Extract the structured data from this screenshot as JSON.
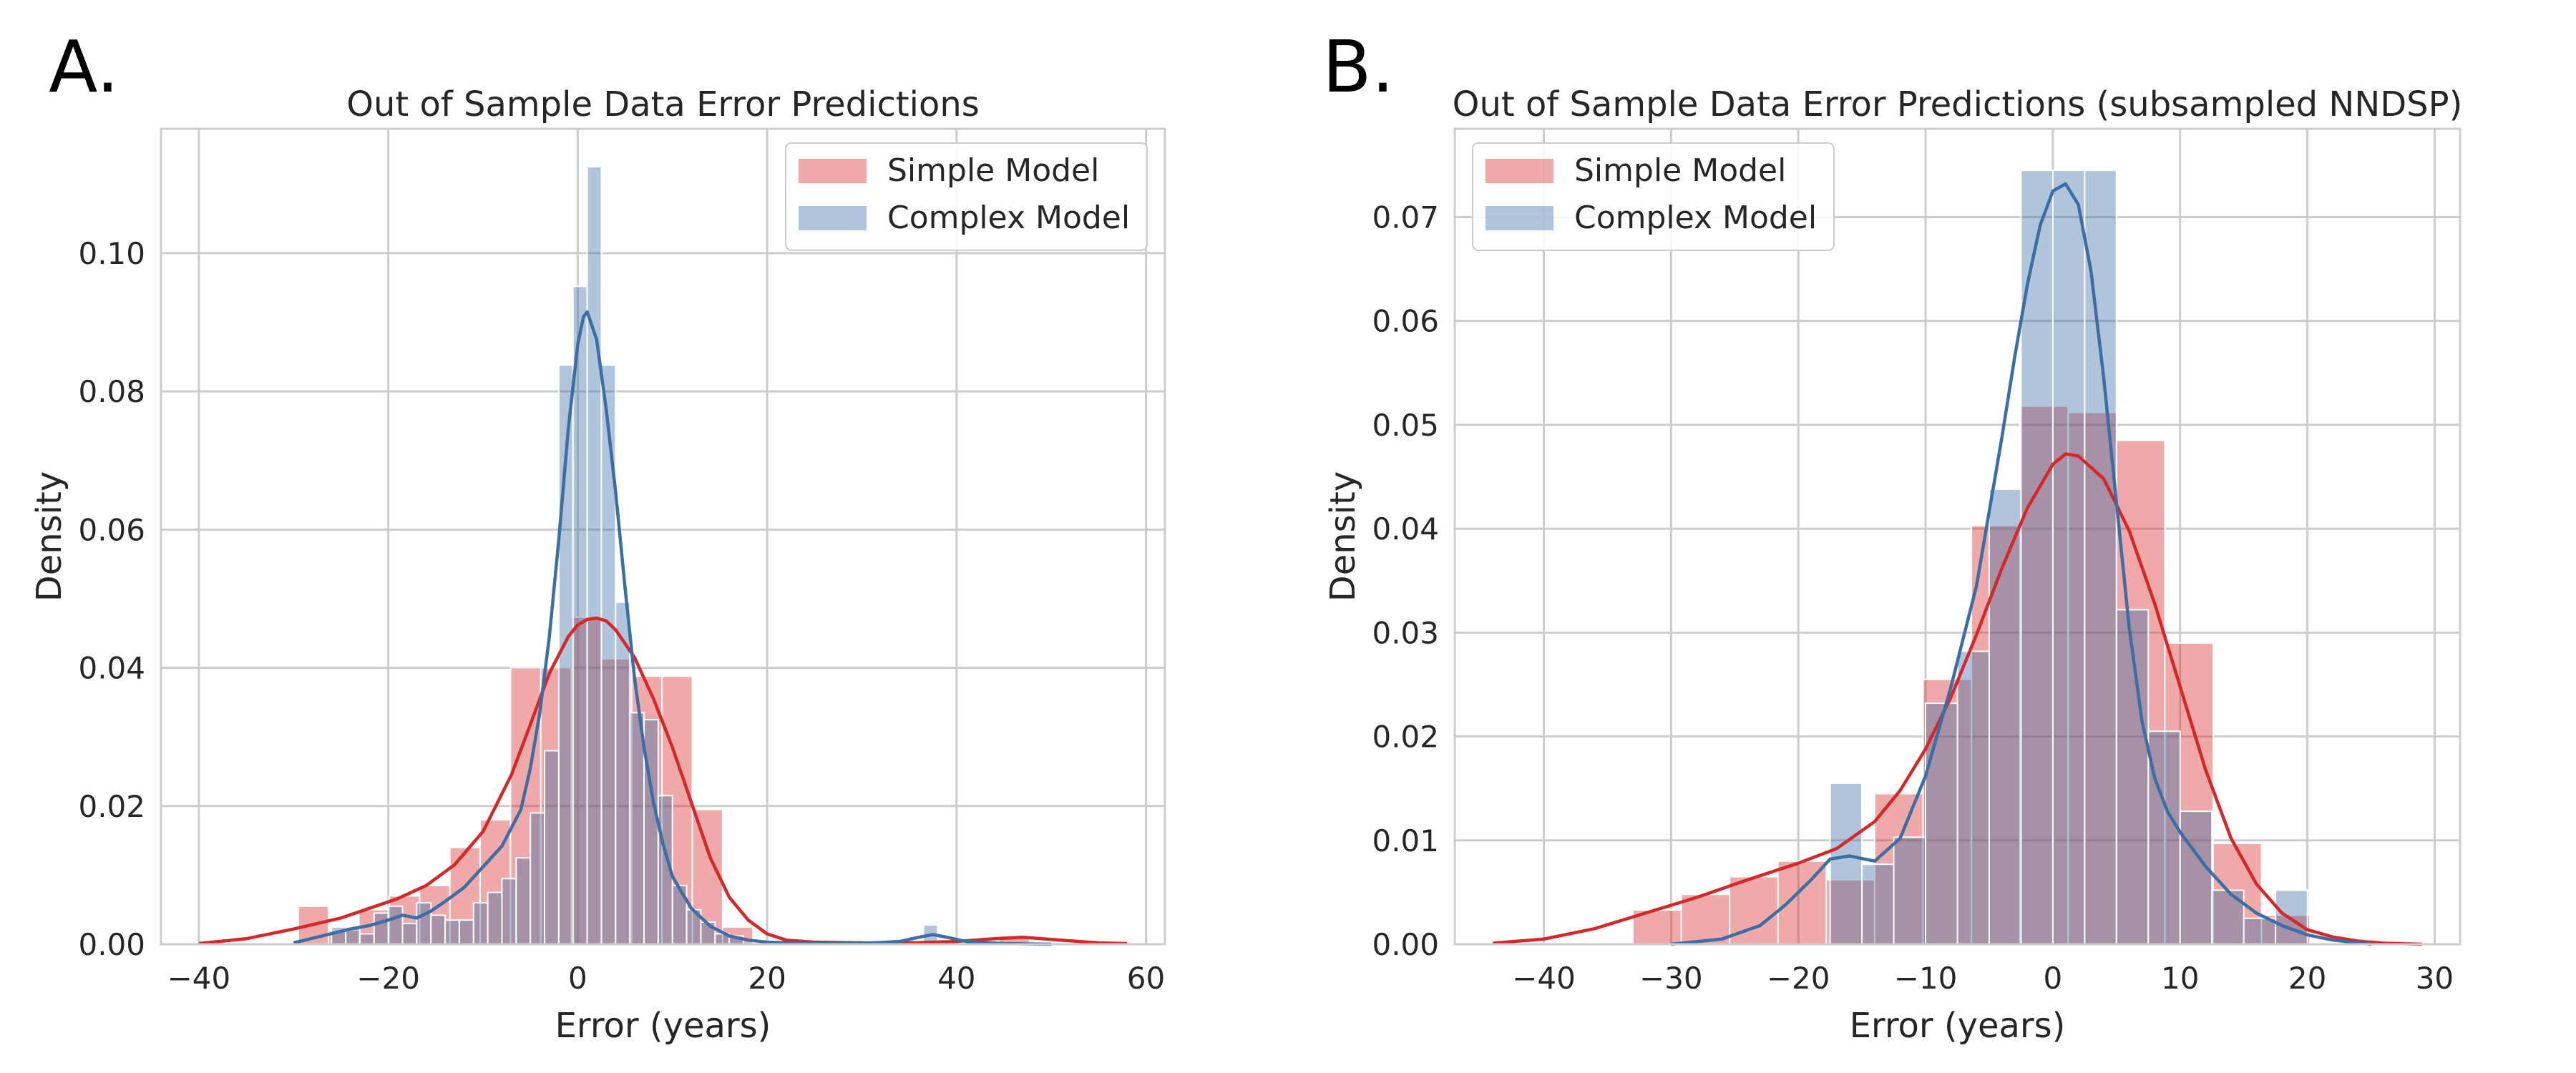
{
  "figure": {
    "panels": [
      "A.",
      "B."
    ]
  },
  "colors": {
    "simple": "#d62728",
    "simple_fill": "#e8a3a6",
    "complex": "#3a6ea5",
    "complex_fill": "#a6c0db",
    "grid": "#cccccc",
    "frame": "#cccccc"
  },
  "chart_data": [
    {
      "type": "histogram",
      "panel": "A.",
      "title": "Out of Sample Data Error Predictions",
      "xlabel": "Error (years)",
      "ylabel": "Density",
      "xlim": [
        -44,
        62
      ],
      "ylim": [
        0,
        0.118
      ],
      "xticks": [
        -40,
        -20,
        0,
        20,
        40,
        60
      ],
      "yticks": [
        0.0,
        0.02,
        0.04,
        0.06,
        0.08,
        0.1
      ],
      "ytick_labels": [
        "0.00",
        "0.02",
        "0.04",
        "0.06",
        "0.08",
        "0.10"
      ],
      "grid": true,
      "legend": "top-right",
      "series": [
        {
          "name": "Simple Model",
          "color_key": "simple",
          "bins": [
            {
              "x0": -29.5,
              "x1": -26.3,
              "y": 0.0055
            },
            {
              "x0": -26.3,
              "x1": -23.1,
              "y": 0.002
            },
            {
              "x0": -23.1,
              "x1": -19.9,
              "y": 0.005
            },
            {
              "x0": -19.9,
              "x1": -16.7,
              "y": 0.007
            },
            {
              "x0": -16.7,
              "x1": -13.5,
              "y": 0.0085
            },
            {
              "x0": -13.5,
              "x1": -10.3,
              "y": 0.014
            },
            {
              "x0": -10.3,
              "x1": -7.1,
              "y": 0.018
            },
            {
              "x0": -7.1,
              "x1": -3.9,
              "y": 0.04
            },
            {
              "x0": -3.9,
              "x1": -0.7,
              "y": 0.04
            },
            {
              "x0": -0.7,
              "x1": 2.5,
              "y": 0.0473
            },
            {
              "x0": 2.5,
              "x1": 5.7,
              "y": 0.0413
            },
            {
              "x0": 5.7,
              "x1": 8.9,
              "y": 0.0388
            },
            {
              "x0": 8.9,
              "x1": 12.1,
              "y": 0.0388
            },
            {
              "x0": 12.1,
              "x1": 15.3,
              "y": 0.0195
            },
            {
              "x0": 15.3,
              "x1": 18.5,
              "y": 0.0025
            },
            {
              "x0": 44.5,
              "x1": 47.7,
              "y": 0.0012
            }
          ],
          "kde": {
            "x": [
              -40,
              -35,
              -30,
              -25,
              -22,
              -19,
              -16,
              -13,
              -10,
              -7,
              -5,
              -3,
              -1,
              0,
              1,
              2,
              3,
              4,
              6,
              8,
              10,
              12,
              14,
              16,
              18,
              20,
              22,
              25,
              30,
              35,
              40,
              44,
              47,
              50,
              55,
              58
            ],
            "y": [
              0.0001,
              0.0008,
              0.0022,
              0.0038,
              0.0052,
              0.0066,
              0.0085,
              0.0115,
              0.0163,
              0.0245,
              0.0318,
              0.0392,
              0.0445,
              0.0462,
              0.047,
              0.0472,
              0.0468,
              0.0455,
              0.0415,
              0.0355,
              0.0285,
              0.0205,
              0.0125,
              0.0068,
              0.0035,
              0.0015,
              0.0006,
              0.0003,
              0.0002,
              0.0002,
              0.0004,
              0.0008,
              0.001,
              0.0007,
              0.0002,
              0.0001
            ]
          }
        },
        {
          "name": "Complex Model",
          "color_key": "complex",
          "bins": [
            {
              "x0": -26.0,
              "x1": -24.5,
              "y": 0.0025
            },
            {
              "x0": -24.5,
              "x1": -23.0,
              "y": 0.0025
            },
            {
              "x0": -23.0,
              "x1": -21.5,
              "y": 0.0015
            },
            {
              "x0": -21.5,
              "x1": -20.0,
              "y": 0.0045
            },
            {
              "x0": -20.0,
              "x1": -18.5,
              "y": 0.0055
            },
            {
              "x0": -18.5,
              "x1": -17.0,
              "y": 0.003
            },
            {
              "x0": -17.0,
              "x1": -15.5,
              "y": 0.006
            },
            {
              "x0": -15.5,
              "x1": -14.0,
              "y": 0.0042
            },
            {
              "x0": -14.0,
              "x1": -12.5,
              "y": 0.0035
            },
            {
              "x0": -12.5,
              "x1": -11.0,
              "y": 0.0035
            },
            {
              "x0": -11.0,
              "x1": -9.5,
              "y": 0.006
            },
            {
              "x0": -9.5,
              "x1": -8.0,
              "y": 0.0075
            },
            {
              "x0": -8.0,
              "x1": -6.5,
              "y": 0.0095
            },
            {
              "x0": -6.5,
              "x1": -5.0,
              "y": 0.0125
            },
            {
              "x0": -5.0,
              "x1": -3.5,
              "y": 0.019
            },
            {
              "x0": -3.5,
              "x1": -2.0,
              "y": 0.028
            },
            {
              "x0": -2.0,
              "x1": -0.5,
              "y": 0.0838
            },
            {
              "x0": -0.5,
              "x1": 1.0,
              "y": 0.0952
            },
            {
              "x0": 1.0,
              "x1": 2.5,
              "y": 0.1125
            },
            {
              "x0": 2.5,
              "x1": 4.0,
              "y": 0.0838
            },
            {
              "x0": 4.0,
              "x1": 5.5,
              "y": 0.0495
            },
            {
              "x0": 5.5,
              "x1": 7.0,
              "y": 0.0335
            },
            {
              "x0": 7.0,
              "x1": 8.5,
              "y": 0.0325
            },
            {
              "x0": 8.5,
              "x1": 10.0,
              "y": 0.0215
            },
            {
              "x0": 10.0,
              "x1": 11.5,
              "y": 0.0085
            },
            {
              "x0": 11.5,
              "x1": 13.0,
              "y": 0.005
            },
            {
              "x0": 13.0,
              "x1": 14.5,
              "y": 0.0032
            },
            {
              "x0": 14.5,
              "x1": 16.0,
              "y": 0.0015
            },
            {
              "x0": 16.0,
              "x1": 17.5,
              "y": 0.0012
            },
            {
              "x0": 36.5,
              "x1": 38.0,
              "y": 0.0028
            }
          ],
          "kde": {
            "x": [
              -30,
              -27,
              -24,
              -22,
              -20,
              -18.5,
              -17,
              -15.5,
              -14,
              -12,
              -10,
              -8,
              -6,
              -5,
              -4,
              -3,
              -2,
              -1,
              0,
              0.6,
              1,
              2,
              3,
              4,
              5,
              6,
              7,
              8,
              9,
              10,
              12,
              14,
              16,
              18,
              20,
              25,
              30,
              34,
              36,
              37.5,
              39,
              41,
              45,
              50
            ],
            "y": [
              0.0002,
              0.0012,
              0.0022,
              0.0027,
              0.0035,
              0.0042,
              0.0038,
              0.0048,
              0.0062,
              0.0082,
              0.0112,
              0.0142,
              0.0195,
              0.0255,
              0.0335,
              0.0445,
              0.0585,
              0.0745,
              0.0868,
              0.0908,
              0.0915,
              0.0875,
              0.0775,
              0.0655,
              0.0515,
              0.0385,
              0.0285,
              0.0205,
              0.0145,
              0.0098,
              0.0052,
              0.0026,
              0.0012,
              0.0006,
              0.0003,
              0.0001,
              0.0001,
              0.0004,
              0.001,
              0.0014,
              0.001,
              0.0004,
              0.0001,
              0.0
            ]
          }
        }
      ]
    },
    {
      "type": "histogram",
      "panel": "B.",
      "title": "Out of Sample Data Error Predictions (subsampled NNDSP)",
      "xlabel": "Error (years)",
      "ylabel": "Density",
      "xlim": [
        -47,
        32
      ],
      "ylim": [
        0,
        0.0785
      ],
      "xticks": [
        -40,
        -30,
        -20,
        -10,
        0,
        10,
        20,
        30
      ],
      "yticks": [
        0.0,
        0.01,
        0.02,
        0.03,
        0.04,
        0.05,
        0.06,
        0.07
      ],
      "ytick_labels": [
        "0.00",
        "0.01",
        "0.02",
        "0.03",
        "0.04",
        "0.05",
        "0.06",
        "0.07"
      ],
      "grid": true,
      "legend": "top-left",
      "series": [
        {
          "name": "Simple Model",
          "color_key": "simple",
          "bins": [
            {
              "x0": -33.0,
              "x1": -29.2,
              "y": 0.0033
            },
            {
              "x0": -29.2,
              "x1": -25.4,
              "y": 0.0048
            },
            {
              "x0": -25.4,
              "x1": -21.6,
              "y": 0.0065
            },
            {
              "x0": -21.6,
              "x1": -17.8,
              "y": 0.008
            },
            {
              "x0": -17.8,
              "x1": -14.0,
              "y": 0.0062
            },
            {
              "x0": -14.0,
              "x1": -10.2,
              "y": 0.0145
            },
            {
              "x0": -10.2,
              "x1": -6.4,
              "y": 0.0255
            },
            {
              "x0": -6.4,
              "x1": -2.6,
              "y": 0.0403
            },
            {
              "x0": -2.6,
              "x1": 1.2,
              "y": 0.0518
            },
            {
              "x0": 1.2,
              "x1": 5.0,
              "y": 0.0512
            },
            {
              "x0": 5.0,
              "x1": 8.8,
              "y": 0.0485
            },
            {
              "x0": 8.8,
              "x1": 12.6,
              "y": 0.029
            },
            {
              "x0": 12.6,
              "x1": 16.4,
              "y": 0.0097
            },
            {
              "x0": 16.4,
              "x1": 20.2,
              "y": 0.0028
            }
          ],
          "kde": {
            "x": [
              -44,
              -40,
              -36,
              -32,
              -28,
              -24,
              -20,
              -17,
              -14,
              -12,
              -10,
              -8,
              -6,
              -4,
              -2,
              0,
              1,
              2,
              4,
              6,
              8,
              10,
              12,
              14,
              16,
              18,
              20,
              22,
              24,
              26,
              29
            ],
            "y": [
              0.0001,
              0.0005,
              0.0015,
              0.003,
              0.0045,
              0.0062,
              0.0078,
              0.0092,
              0.0118,
              0.0148,
              0.0188,
              0.0238,
              0.0298,
              0.0362,
              0.042,
              0.0462,
              0.0472,
              0.047,
              0.0448,
              0.0398,
              0.0328,
              0.0248,
              0.0168,
              0.0102,
              0.0058,
              0.003,
              0.0014,
              0.0007,
              0.0003,
              0.0001,
              0.0
            ]
          }
        },
        {
          "name": "Complex Model",
          "color_key": "complex",
          "bins": [
            {
              "x0": -17.5,
              "x1": -15.0,
              "y": 0.0155
            },
            {
              "x0": -15.0,
              "x1": -12.5,
              "y": 0.0077
            },
            {
              "x0": -12.5,
              "x1": -10.0,
              "y": 0.0103
            },
            {
              "x0": -10.0,
              "x1": -7.5,
              "y": 0.0232
            },
            {
              "x0": -7.5,
              "x1": -5.0,
              "y": 0.0282
            },
            {
              "x0": -5.0,
              "x1": -2.5,
              "y": 0.0438
            },
            {
              "x0": -2.5,
              "x1": 0.0,
              "y": 0.0745
            },
            {
              "x0": 0.0,
              "x1": 2.5,
              "y": 0.0745
            },
            {
              "x0": 2.5,
              "x1": 5.0,
              "y": 0.0745
            },
            {
              "x0": 5.0,
              "x1": 7.5,
              "y": 0.0322
            },
            {
              "x0": 7.5,
              "x1": 10.0,
              "y": 0.0205
            },
            {
              "x0": 10.0,
              "x1": 12.5,
              "y": 0.0128
            },
            {
              "x0": 12.5,
              "x1": 15.0,
              "y": 0.0052
            },
            {
              "x0": 15.0,
              "x1": 17.5,
              "y": 0.0025
            },
            {
              "x0": 17.5,
              "x1": 20.0,
              "y": 0.0052
            }
          ],
          "kde": {
            "x": [
              -30,
              -26,
              -23,
              -21,
              -19,
              -17.5,
              -16,
              -14,
              -12,
              -10,
              -8,
              -6,
              -4,
              -3,
              -2,
              -1,
              0,
              1,
              2,
              3,
              4,
              5,
              6,
              7,
              8,
              9,
              10,
              12,
              14,
              16,
              18,
              20,
              22,
              25
            ],
            "y": [
              0.0,
              0.0005,
              0.0018,
              0.0038,
              0.0062,
              0.0082,
              0.0085,
              0.008,
              0.0102,
              0.0162,
              0.0248,
              0.0345,
              0.0488,
              0.0565,
              0.0635,
              0.0692,
              0.0725,
              0.0732,
              0.0712,
              0.0648,
              0.0545,
              0.0425,
              0.0305,
              0.0215,
              0.016,
              0.0128,
              0.0108,
              0.0075,
              0.0048,
              0.003,
              0.0018,
              0.0009,
              0.0004,
              0.0
            ]
          }
        }
      ]
    }
  ]
}
